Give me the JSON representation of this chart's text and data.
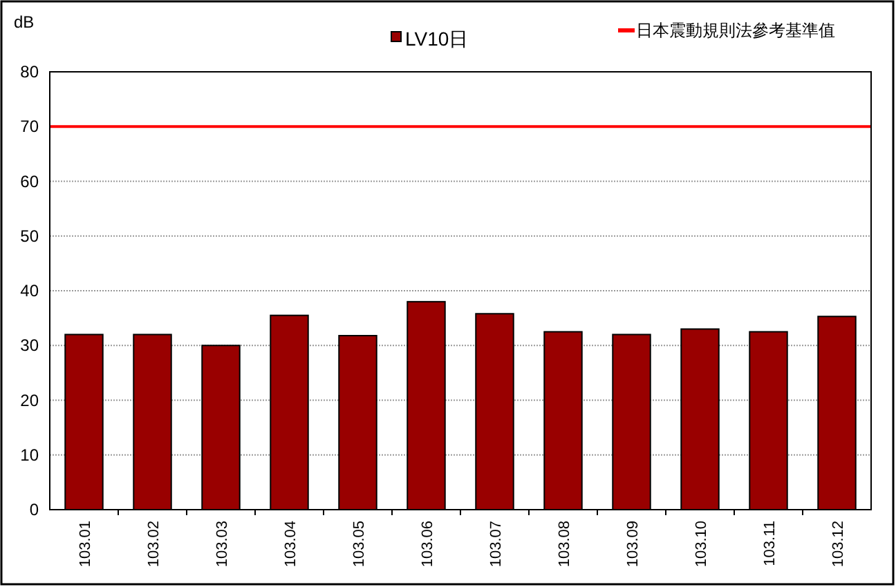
{
  "chart_data": {
    "type": "bar",
    "ylabel": "dB",
    "categories": [
      "103.01",
      "103.02",
      "103.03",
      "103.04",
      "103.05",
      "103.06",
      "103.07",
      "103.08",
      "103.09",
      "103.10",
      "103.11",
      "103.12"
    ],
    "series": [
      {
        "name": "LV10日",
        "color": "#990000",
        "values": [
          32,
          32,
          30,
          35.5,
          31.8,
          38,
          35.8,
          32.5,
          32,
          33,
          32.5,
          35.3
        ]
      }
    ],
    "ylim": [
      0,
      80
    ],
    "yticks": [
      0,
      10,
      20,
      30,
      40,
      50,
      60,
      70,
      80
    ],
    "grid": "y",
    "legend": "top",
    "ref_lines": [
      {
        "axis": "y",
        "value": 70,
        "label": "日本震動規則法參考基準值",
        "color": "#ff0000"
      }
    ]
  }
}
